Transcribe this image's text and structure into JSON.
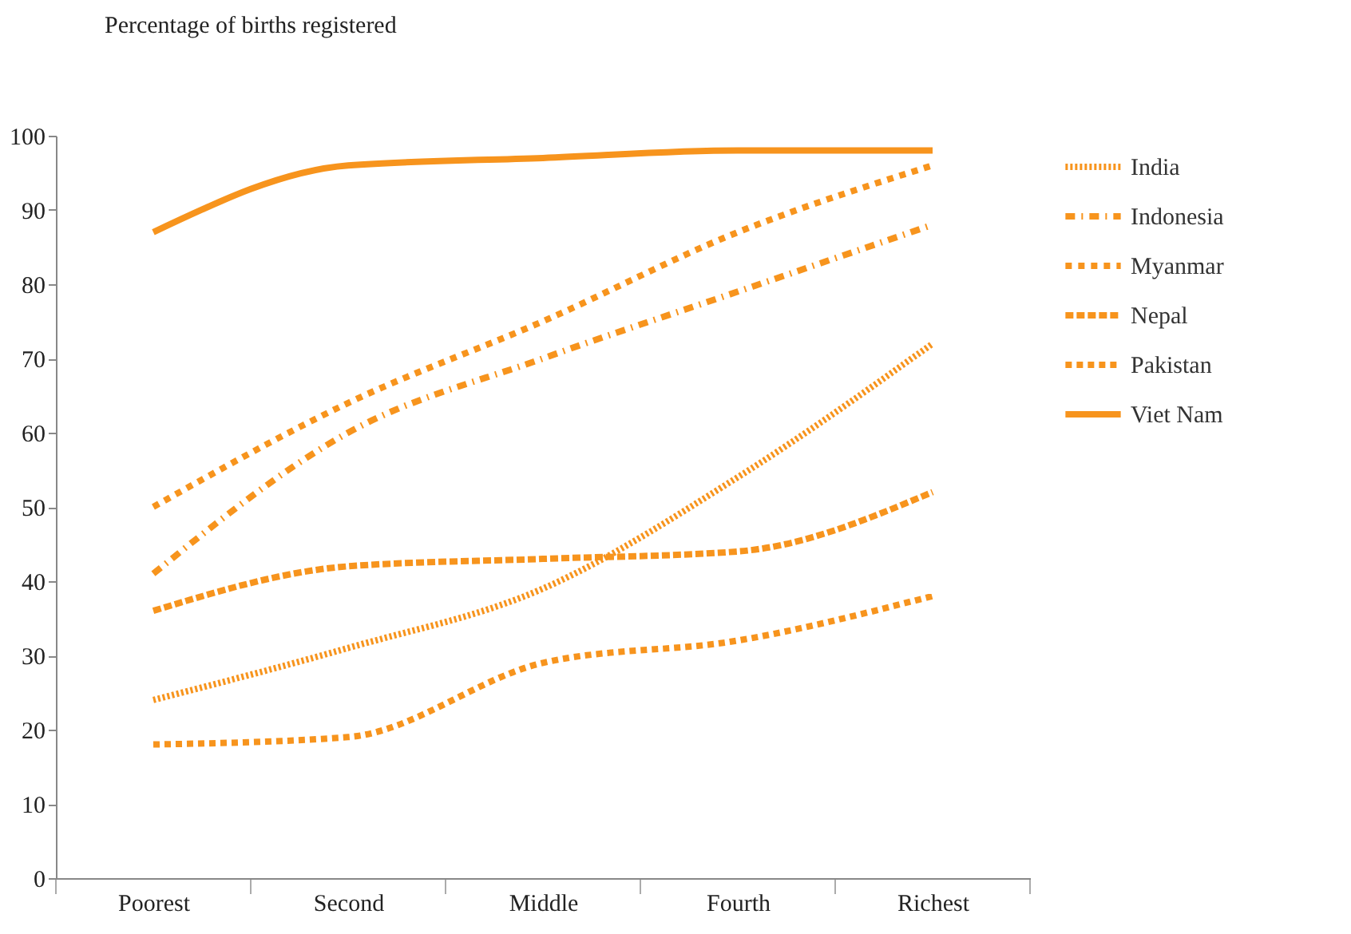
{
  "chart_data": {
    "type": "line",
    "ylabel": "Percentage of births registered",
    "categories": [
      "Poorest",
      "Second",
      "Middle",
      "Fourth",
      "Richest"
    ],
    "ylim": [
      0,
      100
    ],
    "yticks": [
      0,
      10,
      20,
      30,
      40,
      50,
      60,
      70,
      80,
      90,
      100
    ],
    "grid": false,
    "legend": "right",
    "series": [
      {
        "name": "India",
        "color": "#f7941d",
        "line_style": "dotted",
        "values": [
          24,
          31,
          39,
          54,
          72
        ]
      },
      {
        "name": "Indonesia",
        "color": "#f7941d",
        "line_style": "dashed",
        "values": [
          41,
          60,
          70,
          79,
          88
        ]
      },
      {
        "name": "Myanmar",
        "color": "#f7941d",
        "line_style": "dotted",
        "values": [
          50,
          64,
          75,
          87,
          96
        ]
      },
      {
        "name": "Nepal",
        "color": "#f7941d",
        "line_style": "dashed",
        "values": [
          36,
          42,
          43,
          44,
          52
        ]
      },
      {
        "name": "Pakistan",
        "color": "#f7941d",
        "line_style": "dashed",
        "values": [
          18,
          19,
          29,
          32,
          38
        ]
      },
      {
        "name": "Viet Nam",
        "color": "#f7941d",
        "line_style": "solid",
        "values": [
          87,
          96,
          97,
          98,
          98
        ]
      }
    ]
  }
}
